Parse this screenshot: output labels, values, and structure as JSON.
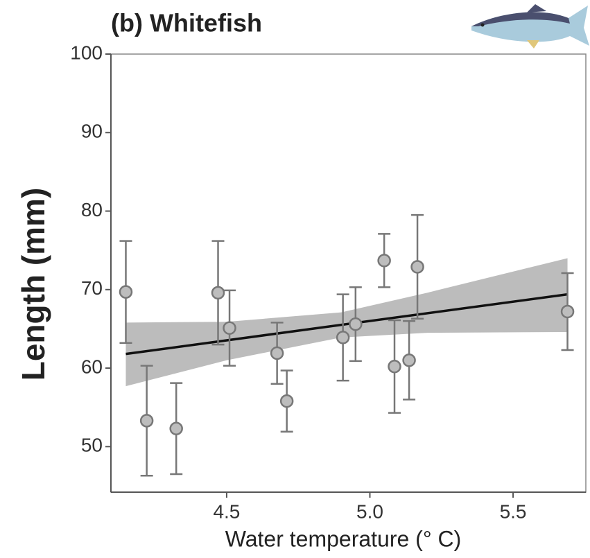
{
  "chart_data": {
    "type": "scatter",
    "title": "(b) Whitefish",
    "x_label": "Water temperature  (° C)",
    "y_label": "Length (mm)",
    "series": [
      {
        "color": "#bdbdbd",
        "x": [
          4.148,
          4.221,
          4.324,
          4.47,
          4.51,
          4.676,
          4.71,
          4.906,
          4.95,
          5.05,
          5.086,
          5.137,
          5.166,
          5.69
        ],
        "values": [
          69.7,
          53.3,
          52.3,
          69.6,
          65.1,
          61.9,
          55.8,
          63.9,
          65.6,
          73.7,
          60.2,
          61.0,
          72.9,
          67.2
        ],
        "errors": [
          6.5,
          7.0,
          5.8,
          6.6,
          4.8,
          3.9,
          3.9,
          5.5,
          4.7,
          3.4,
          5.9,
          5.0,
          6.6,
          4.9
        ]
      }
    ],
    "fit": {
      "color": "#111111",
      "x": [
        4.148,
        5.69
      ],
      "values": [
        61.8,
        69.4
      ]
    },
    "band": {
      "color": "#b5b5b5",
      "x": [
        4.148,
        4.5,
        4.9,
        5.2,
        5.69
      ],
      "upper": [
        65.8,
        65.9,
        67.1,
        69.6,
        74.0
      ],
      "lower": [
        57.7,
        61.0,
        63.9,
        64.5,
        64.6
      ]
    },
    "xlim": [
      4.096,
      5.754
    ],
    "ylim": [
      44.2,
      100
    ],
    "xticks": [
      4.5,
      {
        "value": 5,
        "label": "5.0"
      },
      5.5
    ],
    "yticks": [
      50,
      60,
      70,
      80,
      90,
      100
    ]
  }
}
